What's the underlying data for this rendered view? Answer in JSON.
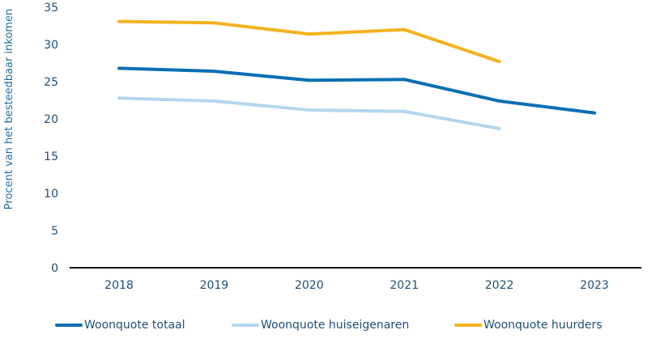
{
  "chart_data": {
    "type": "line",
    "ylabel": "Procent van het besteedbaar inkomen",
    "xlabel": "",
    "ylim": [
      0,
      35
    ],
    "yticks": [
      0,
      5,
      10,
      15,
      20,
      25,
      30,
      35
    ],
    "categories": [
      "2018",
      "2019",
      "2020",
      "2021",
      "2022",
      "2023"
    ],
    "series": [
      {
        "name": "Woonquote totaal",
        "color": "#0a6fb3",
        "values": [
          26.8,
          26.4,
          25.2,
          25.3,
          22.4,
          20.8
        ]
      },
      {
        "name": "Woonquote huiseigenaren",
        "color": "#b3d6ec",
        "values": [
          22.8,
          22.4,
          21.2,
          21.0,
          18.7,
          null
        ]
      },
      {
        "name": "Woonquote huurders",
        "color": "#f5b21e",
        "values": [
          33.1,
          32.9,
          31.4,
          32.0,
          27.7,
          null
        ]
      }
    ],
    "grid": false,
    "legend": "bottom"
  }
}
